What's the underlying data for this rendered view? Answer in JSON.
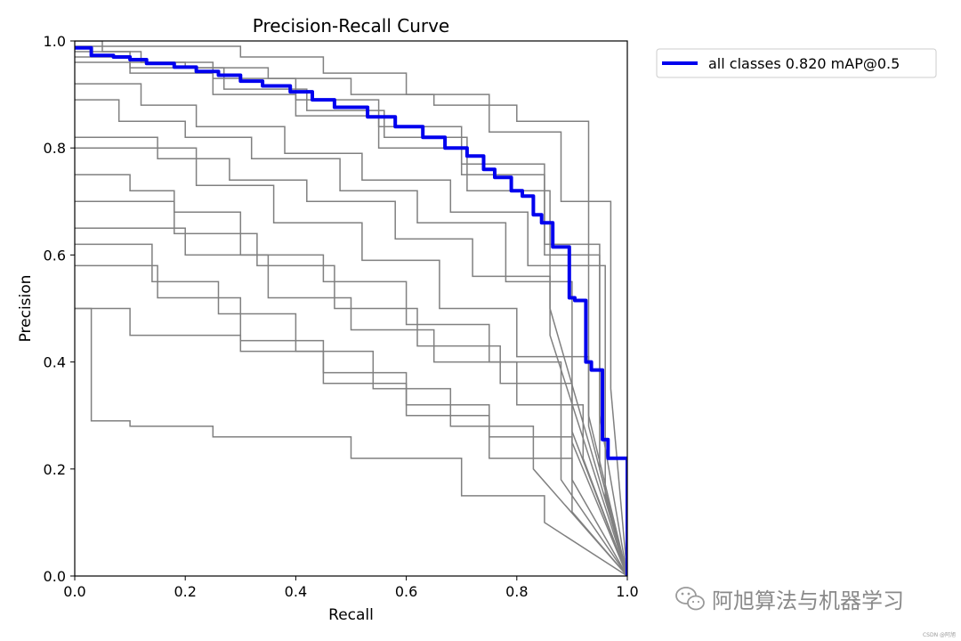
{
  "chart_data": {
    "type": "line",
    "title": "Precision-Recall Curve",
    "xlabel": "Recall",
    "ylabel": "Precision",
    "xlim": [
      0,
      1
    ],
    "ylim": [
      0,
      1
    ],
    "xticks": [
      "0.0",
      "0.2",
      "0.4",
      "0.6",
      "0.8",
      "1.0"
    ],
    "yticks": [
      "0.0",
      "0.2",
      "0.4",
      "0.6",
      "0.8",
      "1.0"
    ],
    "grid": false,
    "legend_position": "outside-top-right",
    "series": [
      {
        "name": "all classes 0.820 mAP@0.5",
        "color": "#0000ee",
        "x": [
          0.0,
          0.03,
          0.03,
          0.07,
          0.07,
          0.1,
          0.1,
          0.13,
          0.13,
          0.18,
          0.18,
          0.22,
          0.22,
          0.26,
          0.26,
          0.3,
          0.3,
          0.34,
          0.34,
          0.39,
          0.39,
          0.43,
          0.43,
          0.47,
          0.47,
          0.53,
          0.53,
          0.58,
          0.58,
          0.63,
          0.63,
          0.67,
          0.67,
          0.71,
          0.71,
          0.74,
          0.74,
          0.76,
          0.76,
          0.79,
          0.79,
          0.81,
          0.81,
          0.83,
          0.83,
          0.845,
          0.845,
          0.865,
          0.865,
          0.895,
          0.895,
          0.905,
          0.905,
          0.925,
          0.925,
          0.935,
          0.935,
          0.955,
          0.955,
          0.965,
          0.965,
          1.0,
          1.0
        ],
        "y": [
          0.987,
          0.987,
          0.973,
          0.973,
          0.97,
          0.97,
          0.965,
          0.965,
          0.958,
          0.958,
          0.951,
          0.951,
          0.943,
          0.943,
          0.936,
          0.936,
          0.925,
          0.925,
          0.916,
          0.916,
          0.905,
          0.905,
          0.89,
          0.89,
          0.876,
          0.876,
          0.858,
          0.858,
          0.84,
          0.84,
          0.82,
          0.82,
          0.8,
          0.8,
          0.785,
          0.785,
          0.76,
          0.76,
          0.745,
          0.745,
          0.72,
          0.72,
          0.71,
          0.71,
          0.675,
          0.675,
          0.66,
          0.66,
          0.615,
          0.615,
          0.52,
          0.52,
          0.515,
          0.515,
          0.4,
          0.4,
          0.385,
          0.385,
          0.255,
          0.255,
          0.22,
          0.22,
          0.0
        ]
      }
    ],
    "class_curves_color": "#808080",
    "class_curves": [
      {
        "x": [
          0.0,
          0.05,
          0.05,
          0.12,
          0.12,
          0.2,
          0.2,
          0.35,
          0.35,
          0.5,
          0.5,
          0.65,
          0.65,
          0.8,
          0.8,
          0.93,
          0.93,
          1.0
        ],
        "y": [
          1.0,
          1.0,
          0.98,
          0.98,
          0.96,
          0.96,
          0.95,
          0.95,
          0.93,
          0.93,
          0.9,
          0.9,
          0.88,
          0.88,
          0.85,
          0.85,
          0.3,
          0.0
        ]
      },
      {
        "x": [
          0.0,
          0.1,
          0.1,
          0.25,
          0.25,
          0.4,
          0.4,
          0.55,
          0.55,
          0.7,
          0.7,
          0.85,
          0.85,
          0.95,
          0.95,
          1.0
        ],
        "y": [
          0.97,
          0.97,
          0.94,
          0.94,
          0.9,
          0.9,
          0.86,
          0.86,
          0.8,
          0.8,
          0.75,
          0.75,
          0.6,
          0.6,
          0.2,
          0.0
        ]
      },
      {
        "x": [
          0.0,
          0.08,
          0.08,
          0.2,
          0.2,
          0.32,
          0.32,
          0.48,
          0.48,
          0.62,
          0.62,
          0.78,
          0.78,
          0.9,
          0.9,
          1.0
        ],
        "y": [
          0.89,
          0.89,
          0.85,
          0.85,
          0.82,
          0.82,
          0.78,
          0.78,
          0.72,
          0.72,
          0.66,
          0.66,
          0.55,
          0.55,
          0.25,
          0.0
        ]
      },
      {
        "x": [
          0.0,
          0.1,
          0.1,
          0.18,
          0.18,
          0.3,
          0.3,
          0.45,
          0.45,
          0.6,
          0.6,
          0.75,
          0.75,
          0.88,
          0.88,
          1.0
        ],
        "y": [
          0.75,
          0.75,
          0.72,
          0.72,
          0.68,
          0.68,
          0.6,
          0.6,
          0.55,
          0.55,
          0.47,
          0.47,
          0.4,
          0.4,
          0.18,
          0.0
        ]
      },
      {
        "x": [
          0.0,
          0.1,
          0.1,
          0.3,
          0.3,
          0.45,
          0.45,
          0.6,
          0.6,
          0.75,
          0.75,
          0.9,
          0.9,
          1.0
        ],
        "y": [
          0.5,
          0.5,
          0.45,
          0.45,
          0.42,
          0.42,
          0.36,
          0.36,
          0.3,
          0.3,
          0.22,
          0.22,
          0.12,
          0.0
        ]
      },
      {
        "x": [
          0.0,
          0.03,
          0.03,
          0.1,
          0.1,
          0.25,
          0.25,
          0.5,
          0.5,
          0.7,
          0.7,
          0.85,
          0.85,
          1.0
        ],
        "y": [
          0.5,
          0.5,
          0.29,
          0.29,
          0.28,
          0.28,
          0.26,
          0.26,
          0.22,
          0.22,
          0.15,
          0.15,
          0.1,
          0.0
        ]
      },
      {
        "x": [
          0.0,
          0.15,
          0.15,
          0.28,
          0.28,
          0.42,
          0.42,
          0.58,
          0.58,
          0.72,
          0.72,
          0.86,
          0.86,
          1.0
        ],
        "y": [
          0.82,
          0.82,
          0.78,
          0.78,
          0.74,
          0.74,
          0.7,
          0.7,
          0.63,
          0.63,
          0.56,
          0.56,
          0.45,
          0.0
        ]
      },
      {
        "x": [
          0.0,
          0.12,
          0.12,
          0.22,
          0.22,
          0.38,
          0.38,
          0.52,
          0.52,
          0.68,
          0.68,
          0.82,
          0.82,
          0.96,
          0.96,
          1.0
        ],
        "y": [
          0.92,
          0.92,
          0.88,
          0.88,
          0.84,
          0.84,
          0.79,
          0.79,
          0.74,
          0.74,
          0.68,
          0.68,
          0.58,
          0.58,
          0.15,
          0.0
        ]
      },
      {
        "x": [
          0.0,
          0.2,
          0.2,
          0.35,
          0.35,
          0.5,
          0.5,
          0.65,
          0.65,
          0.8,
          0.8,
          0.92,
          0.92,
          1.0
        ],
        "y": [
          0.65,
          0.65,
          0.6,
          0.6,
          0.52,
          0.52,
          0.46,
          0.46,
          0.4,
          0.4,
          0.32,
          0.32,
          0.22,
          0.0
        ]
      },
      {
        "x": [
          0.0,
          0.15,
          0.15,
          0.3,
          0.3,
          0.45,
          0.45,
          0.6,
          0.6,
          0.75,
          0.75,
          0.9,
          0.9,
          1.0
        ],
        "y": [
          0.58,
          0.58,
          0.52,
          0.52,
          0.44,
          0.44,
          0.38,
          0.38,
          0.32,
          0.32,
          0.26,
          0.26,
          0.18,
          0.0
        ]
      },
      {
        "x": [
          0.0,
          0.25,
          0.25,
          0.4,
          0.4,
          0.55,
          0.55,
          0.7,
          0.7,
          0.85,
          0.85,
          0.95,
          0.95,
          1.0
        ],
        "y": [
          0.96,
          0.96,
          0.93,
          0.93,
          0.89,
          0.89,
          0.84,
          0.84,
          0.77,
          0.77,
          0.62,
          0.62,
          0.3,
          0.0
        ]
      },
      {
        "x": [
          0.0,
          0.18,
          0.18,
          0.33,
          0.33,
          0.47,
          0.47,
          0.62,
          0.62,
          0.77,
          0.77,
          0.9,
          0.9,
          1.0
        ],
        "y": [
          0.7,
          0.7,
          0.64,
          0.64,
          0.58,
          0.58,
          0.5,
          0.5,
          0.43,
          0.43,
          0.36,
          0.36,
          0.27,
          0.0
        ]
      },
      {
        "x": [
          0.0,
          0.1,
          0.1,
          0.27,
          0.27,
          0.42,
          0.42,
          0.56,
          0.56,
          0.71,
          0.71,
          0.86,
          0.86,
          1.0
        ],
        "y": [
          0.98,
          0.98,
          0.95,
          0.95,
          0.91,
          0.91,
          0.87,
          0.87,
          0.82,
          0.82,
          0.72,
          0.72,
          0.5,
          0.0
        ]
      },
      {
        "x": [
          0.0,
          0.22,
          0.22,
          0.36,
          0.36,
          0.52,
          0.52,
          0.66,
          0.66,
          0.8,
          0.8,
          0.93,
          0.93,
          1.0
        ],
        "y": [
          0.8,
          0.8,
          0.73,
          0.73,
          0.66,
          0.66,
          0.59,
          0.59,
          0.5,
          0.5,
          0.41,
          0.41,
          0.28,
          0.0
        ]
      },
      {
        "x": [
          0.0,
          0.3,
          0.3,
          0.45,
          0.45,
          0.6,
          0.6,
          0.75,
          0.75,
          0.88,
          0.88,
          0.97,
          0.97,
          1.0
        ],
        "y": [
          0.99,
          0.99,
          0.97,
          0.97,
          0.94,
          0.94,
          0.9,
          0.9,
          0.83,
          0.83,
          0.7,
          0.7,
          0.35,
          0.0
        ]
      },
      {
        "x": [
          0.0,
          0.14,
          0.14,
          0.26,
          0.26,
          0.4,
          0.4,
          0.54,
          0.54,
          0.68,
          0.68,
          0.83,
          0.83,
          1.0
        ],
        "y": [
          0.62,
          0.62,
          0.55,
          0.55,
          0.49,
          0.49,
          0.42,
          0.42,
          0.35,
          0.35,
          0.28,
          0.28,
          0.2,
          0.0
        ]
      }
    ]
  },
  "watermark": {
    "icon": "wechat-icon",
    "text": "阿旭算法与机器学习"
  },
  "credit": "CSDN @阿旭"
}
